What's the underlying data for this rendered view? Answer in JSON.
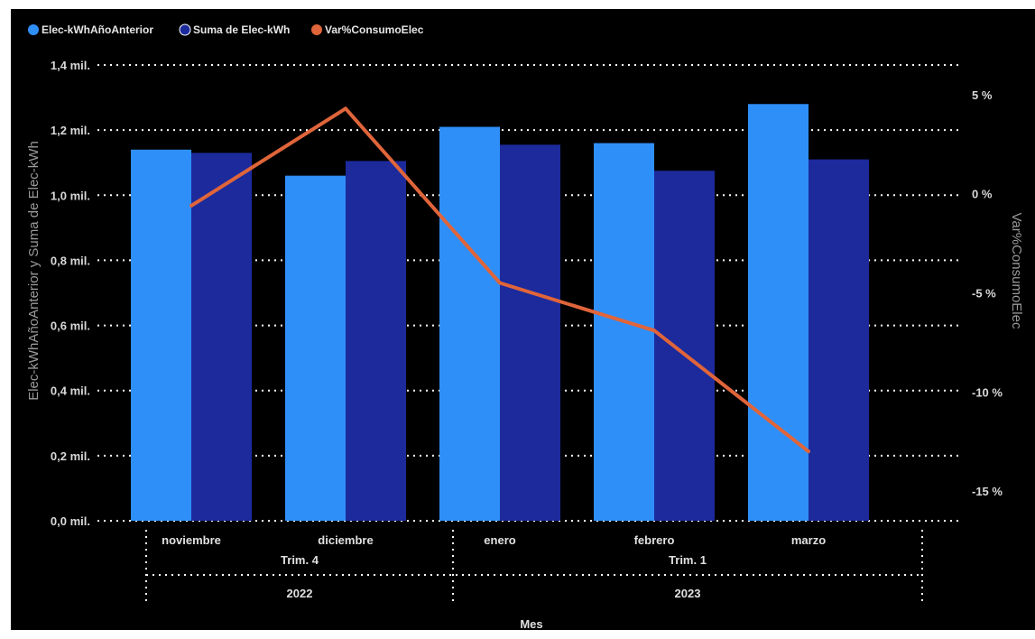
{
  "chart_data": {
    "type": "bar",
    "categories": [
      "noviembre",
      "diciembre",
      "enero",
      "febrero",
      "marzo"
    ],
    "quarters": [
      "Trim. 4",
      "Trim. 1"
    ],
    "years": [
      "2022",
      "2023"
    ],
    "xlabel": "Mes",
    "ylabel_left": "Elec-kWhAñoAnterior y Suma de Elec-kWh",
    "ylabel_right": "Var%ConsumoElec",
    "yticks_left": [
      "0,0 mil.",
      "0,2 mil.",
      "0,4 mil.",
      "0,6 mil.",
      "0,8 mil.",
      "1,0 mil.",
      "1,2 mil.",
      "1,4 mil."
    ],
    "yticks_right": [
      "5 %",
      "0 %",
      "-5 %",
      "-10 %",
      "-15 %"
    ],
    "ylim_left": [
      0,
      1400
    ],
    "ylim_right": [
      -16.5,
      6.5
    ],
    "grid": true,
    "legend_position": "top-left",
    "series": [
      {
        "name": "Elec-kWhAñoAnterior",
        "kind": "bar",
        "color": "#2f8ff8",
        "values": [
          1140,
          1060,
          1210,
          1160,
          1280
        ]
      },
      {
        "name": "Suma de Elec-kWh",
        "kind": "bar",
        "color": "#1c2a9c",
        "values": [
          1130,
          1105,
          1155,
          1075,
          1110
        ]
      },
      {
        "name": "Var%ConsumoElec",
        "kind": "line",
        "color": "#e0653a",
        "values": [
          -0.6,
          4.3,
          -4.5,
          -6.9,
          -13.0
        ]
      }
    ]
  }
}
